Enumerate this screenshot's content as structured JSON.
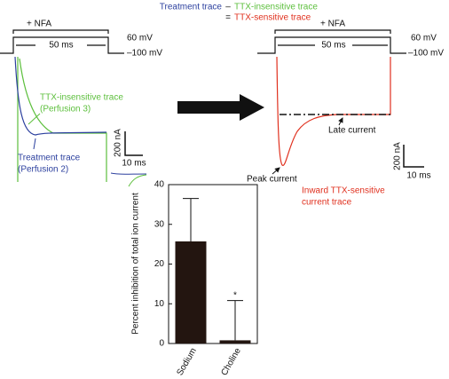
{
  "chart_data": {
    "type": "bar",
    "y_label": "Percent inhibition of total ion current",
    "categories": [
      "Sodium",
      "Choline"
    ],
    "values": [
      25.7,
      0.8
    ],
    "errors": [
      10.8,
      10.0
    ],
    "color": "#231510",
    "ylim": [
      0,
      40
    ],
    "yticks": [
      0,
      10,
      20,
      30,
      40
    ],
    "annotations": [
      {
        "category": "Choline",
        "text": "*"
      }
    ]
  },
  "figure": {
    "equation": {
      "term1": "Treatment trace",
      "minus": "–",
      "term2": "TTX-insensitive trace",
      "equals": "=",
      "result": "TTX-sensitive trace"
    },
    "left_protocol": {
      "drug": "+ NFA",
      "duration": "50 ms",
      "high": "60 mV",
      "low": "–100 mV"
    },
    "right_protocol": {
      "drug": "+ NFA",
      "duration": "50 ms",
      "high": "60 mV",
      "low": "–100 mV"
    },
    "left_traces": {
      "insensitive": [
        "TTX-insensitive trace",
        "(Perfusion 3)"
      ],
      "treatment": [
        "Treatment trace",
        "(Perfusion 2)"
      ],
      "scale_y": "200 nA",
      "scale_x": "10 ms"
    },
    "right_trace": {
      "late": "Late current",
      "peak": "Peak current",
      "label": [
        "Inward TTX-sensitive",
        "current trace"
      ],
      "scale_y": "200 nA",
      "scale_x": "10 ms"
    }
  }
}
